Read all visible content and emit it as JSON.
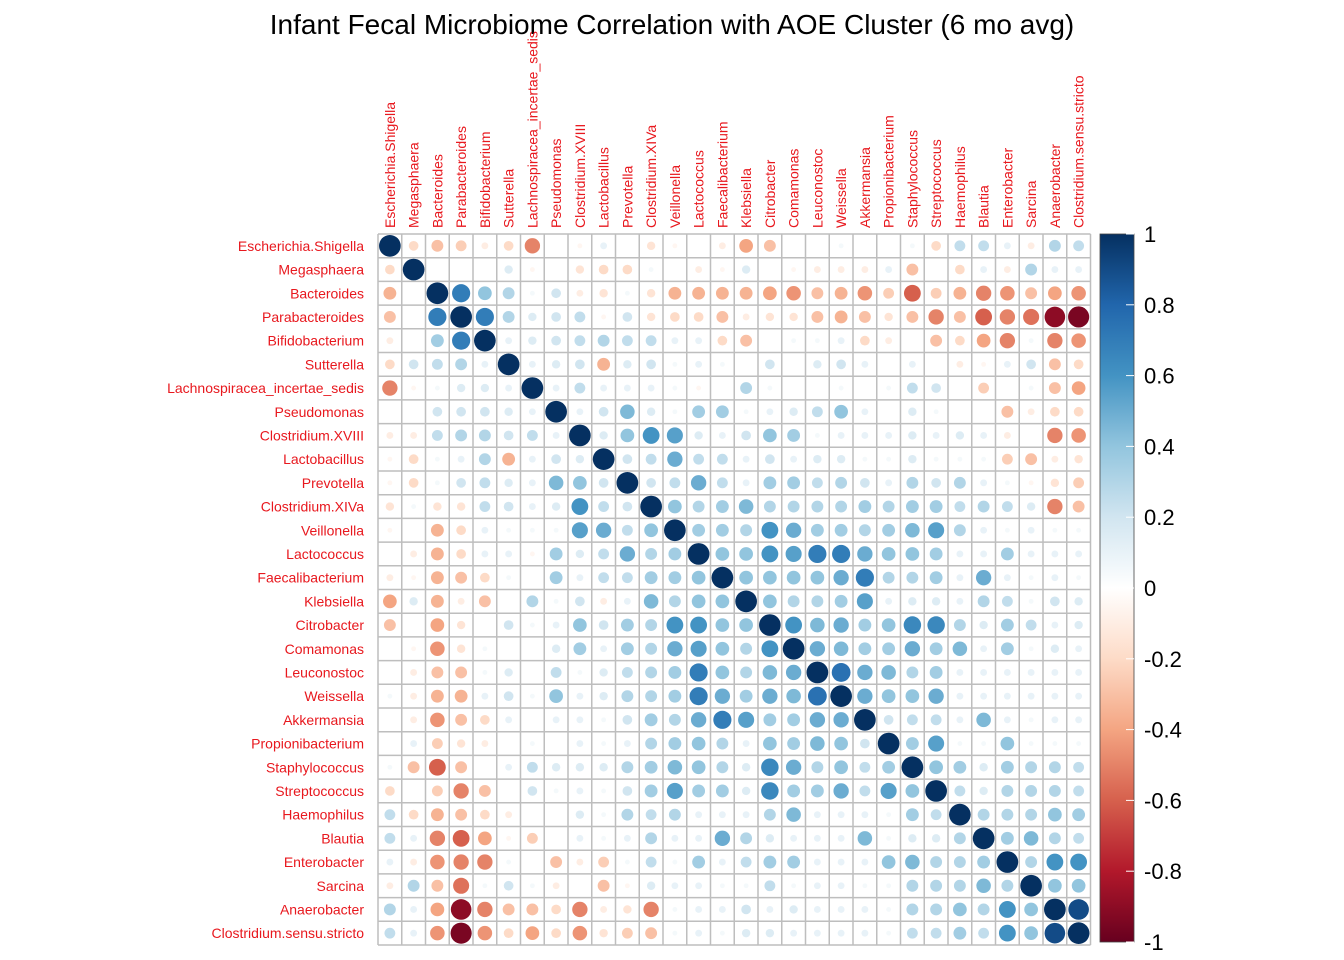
{
  "chart_data": {
    "type": "heatmap",
    "title": "Infant Fecal Microbiome Correlation with AOE Cluster (6 mo avg)",
    "labels": [
      "Escherichia.Shigella",
      "Megasphaera",
      "Bacteroides",
      "Parabacteroides",
      "Bifidobacterium",
      "Sutterella",
      "Lachnospiracea_incertae_sedis",
      "Pseudomonas",
      "Clostridium.XVIII",
      "Lactobacillus",
      "Prevotella",
      "Clostridium.XIVa",
      "Veillonella",
      "Lactococcus",
      "Faecalibacterium",
      "Klebsiella",
      "Citrobacter",
      "Comamonas",
      "Leuconostoc",
      "Weissella",
      "Akkermansia",
      "Propionibacterium",
      "Staphylococcus",
      "Streptococcus",
      "Haemophilus",
      "Blautia",
      "Enterobacter",
      "Sarcina",
      "Anaerobacter",
      "Clostridium.sensu.stricto"
    ],
    "label_color": "#e8181e",
    "value_range": [
      -1,
      1
    ],
    "colorbar_ticks": [
      "1",
      "0.8",
      "0.6",
      "0.4",
      "0.2",
      "0",
      "-0.2",
      "-0.4",
      "-0.6",
      "-0.8",
      "-1"
    ],
    "colorscale": [
      "#67001f",
      "#b2182b",
      "#d6604d",
      "#f4a582",
      "#fddbc7",
      "#ffffff",
      "#d1e5f0",
      "#92c5de",
      "#4393c3",
      "#2166ac",
      "#053061"
    ],
    "method": "circle",
    "matrix": [
      [
        1,
        -0.2,
        -0.3,
        -0.25,
        -0.1,
        -0.2,
        -0.5,
        0,
        -0.05,
        0.1,
        0,
        -0.15,
        -0.05,
        0,
        -0.1,
        -0.4,
        -0.3,
        0,
        0,
        0.05,
        0,
        0,
        0.05,
        -0.2,
        0.25,
        0.25,
        0.1,
        -0.1,
        0.3,
        0.25
      ],
      [
        -0.2,
        1,
        0,
        0,
        0,
        0.15,
        -0.05,
        0,
        -0.15,
        -0.2,
        -0.2,
        0.05,
        0,
        -0.1,
        -0.05,
        0.15,
        0,
        -0.05,
        -0.1,
        -0.1,
        -0.1,
        0.1,
        -0.3,
        0,
        -0.2,
        0.1,
        -0.1,
        0.3,
        0.1,
        0.1
      ],
      [
        -0.35,
        0,
        1,
        0.7,
        0.4,
        0.3,
        0.05,
        0.2,
        -0.1,
        -0.15,
        0.05,
        -0.15,
        -0.35,
        -0.35,
        -0.35,
        -0.35,
        -0.4,
        -0.45,
        -0.3,
        -0.35,
        -0.45,
        -0.25,
        -0.6,
        -0.25,
        -0.35,
        -0.5,
        -0.45,
        -0.3,
        -0.4,
        -0.45
      ],
      [
        -0.3,
        0,
        0.7,
        1,
        0.7,
        0.3,
        0.15,
        0.2,
        0.25,
        -0.05,
        0.2,
        -0.15,
        -0.2,
        -0.2,
        -0.3,
        -0.1,
        -0.15,
        -0.15,
        -0.3,
        -0.35,
        -0.3,
        -0.15,
        -0.3,
        -0.5,
        -0.3,
        -0.6,
        -0.5,
        -0.55,
        -0.9,
        -0.95
      ],
      [
        -0.1,
        0,
        0.35,
        0.7,
        1,
        0.1,
        0.15,
        0.2,
        0.25,
        0.3,
        0.25,
        0.25,
        0.1,
        0.1,
        -0.2,
        -0.3,
        0,
        0.05,
        0.05,
        0.1,
        -0.2,
        -0.1,
        0,
        -0.3,
        -0.2,
        -0.4,
        -0.5,
        0.05,
        -0.5,
        -0.45
      ],
      [
        -0.2,
        0.2,
        0.25,
        0.3,
        0.1,
        1,
        0.1,
        0.15,
        0.2,
        -0.35,
        0.15,
        0.2,
        0.05,
        0.1,
        0.05,
        0,
        0.2,
        0,
        0.15,
        0.2,
        0.1,
        0,
        0.1,
        0,
        -0.1,
        -0.05,
        0.1,
        0.2,
        -0.3,
        -0.2
      ],
      [
        -0.5,
        -0.05,
        0.05,
        0.15,
        0.15,
        0.1,
        1,
        0.1,
        0.25,
        0.1,
        0.1,
        0.1,
        0.05,
        -0.05,
        0,
        0.3,
        0.05,
        0,
        0,
        0.05,
        0,
        0.05,
        0.25,
        0.2,
        0,
        -0.25,
        0,
        0.05,
        -0.3,
        -0.4
      ],
      [
        0,
        0,
        0.2,
        0.2,
        0.2,
        0.15,
        0.1,
        1,
        0.1,
        0.2,
        0.45,
        0.15,
        0.05,
        0.35,
        0.35,
        0.05,
        0.1,
        0.15,
        0.25,
        0.4,
        0.1,
        0,
        0.15,
        0.05,
        0,
        0,
        -0.3,
        -0.1,
        -0.2,
        -0.2
      ],
      [
        -0.1,
        -0.1,
        0.25,
        0.3,
        0.3,
        0.2,
        0.25,
        0.1,
        1,
        0.15,
        0.4,
        0.6,
        0.55,
        0.15,
        0.1,
        0.2,
        0.4,
        0.35,
        0.05,
        0.1,
        0.1,
        0.1,
        0.15,
        0.1,
        0.15,
        0.1,
        -0.1,
        0,
        -0.5,
        -0.45
      ],
      [
        -0.05,
        -0.2,
        0.05,
        0.1,
        0.3,
        -0.35,
        0.1,
        0.2,
        0.15,
        1,
        0.2,
        0.25,
        0.5,
        0.25,
        0.25,
        0.1,
        0.2,
        0.1,
        0.15,
        0.15,
        0.05,
        0.05,
        0.15,
        0.05,
        0.05,
        0.05,
        -0.25,
        -0.3,
        -0.1,
        -0.15
      ],
      [
        -0.05,
        -0.2,
        0.05,
        0.2,
        0.25,
        0.15,
        0.1,
        0.45,
        0.4,
        0.2,
        1,
        0.2,
        0.25,
        0.5,
        0.25,
        0.1,
        0.35,
        0.35,
        0.25,
        0.3,
        0.2,
        0.1,
        0.3,
        0.2,
        0.3,
        0.1,
        0.05,
        -0.05,
        -0.15,
        -0.25
      ],
      [
        -0.15,
        0.05,
        -0.15,
        -0.15,
        0.25,
        0.2,
        0.1,
        0.15,
        0.6,
        0.25,
        0.2,
        1,
        0.4,
        0.3,
        0.35,
        0.45,
        0.3,
        0.3,
        0.3,
        0.3,
        0.35,
        0.3,
        0.35,
        0.35,
        0.25,
        0.3,
        0.25,
        0.15,
        -0.5,
        -0.3
      ],
      [
        -0.05,
        0,
        -0.35,
        -0.2,
        0.1,
        0.05,
        0.05,
        0.05,
        0.55,
        0.5,
        0.25,
        0.4,
        1,
        0.35,
        0.35,
        0.3,
        0.6,
        0.5,
        0.35,
        0.35,
        0.3,
        0.35,
        0.45,
        0.55,
        0.3,
        0.1,
        0.05,
        0.1,
        0.05,
        0.05
      ],
      [
        0,
        -0.1,
        -0.35,
        -0.2,
        0.1,
        0.1,
        -0.05,
        0.35,
        0.15,
        0.25,
        0.5,
        0.3,
        0.35,
        1,
        0.4,
        0.4,
        0.6,
        0.55,
        0.7,
        0.7,
        0.5,
        0.4,
        0.4,
        0.35,
        0.1,
        0.1,
        0.35,
        0.1,
        0.1,
        0.1
      ],
      [
        -0.1,
        -0.05,
        -0.35,
        -0.3,
        -0.2,
        0.05,
        0,
        0.35,
        0.1,
        0.25,
        0.25,
        0.35,
        0.35,
        0.4,
        1,
        0.4,
        0.4,
        0.4,
        0.4,
        0.5,
        0.7,
        0.3,
        0.3,
        0.35,
        0.1,
        0.5,
        0.1,
        0.05,
        0.1,
        0.05
      ],
      [
        -0.4,
        0.15,
        -0.35,
        -0.1,
        -0.3,
        0,
        0.3,
        0.05,
        0.2,
        -0.1,
        0.1,
        0.45,
        0.3,
        0.4,
        0.4,
        1,
        0.4,
        0.3,
        0.3,
        0.35,
        0.55,
        0.1,
        0.15,
        0.15,
        0.1,
        0.3,
        0.25,
        0.05,
        0.2,
        0.15
      ],
      [
        -0.3,
        0,
        -0.4,
        -0.15,
        0,
        0.2,
        0.05,
        0.1,
        0.4,
        0.2,
        0.35,
        0.3,
        0.6,
        0.6,
        0.4,
        0.4,
        1,
        0.6,
        0.45,
        0.5,
        0.35,
        0.4,
        0.65,
        0.65,
        0.3,
        0.15,
        0.35,
        0.25,
        0.1,
        0.15
      ],
      [
        0,
        -0.05,
        -0.45,
        -0.15,
        0.05,
        0,
        0,
        0.15,
        0.35,
        0.1,
        0.35,
        0.3,
        0.5,
        0.55,
        0.4,
        0.3,
        0.6,
        1,
        0.5,
        0.45,
        0.35,
        0.35,
        0.5,
        0.35,
        0.45,
        0.1,
        0.35,
        0.05,
        0.15,
        0.1
      ],
      [
        0,
        -0.1,
        -0.3,
        -0.3,
        0.05,
        0.15,
        0,
        0.25,
        0.05,
        0.15,
        0.25,
        0.3,
        0.35,
        0.7,
        0.4,
        0.3,
        0.45,
        0.5,
        1,
        0.75,
        0.5,
        0.45,
        0.3,
        0.35,
        0.1,
        0.1,
        0.1,
        0.1,
        0.1,
        0.1
      ],
      [
        0.05,
        -0.1,
        -0.35,
        -0.35,
        0.1,
        0.2,
        0.05,
        0.4,
        0.1,
        0.15,
        0.3,
        0.3,
        0.35,
        0.7,
        0.5,
        0.35,
        0.5,
        0.45,
        0.75,
        1,
        0.5,
        0.4,
        0.4,
        0.5,
        0.1,
        0.1,
        0.1,
        0.1,
        0.1,
        0.1
      ],
      [
        0,
        -0.1,
        -0.45,
        -0.3,
        -0.2,
        0.1,
        0,
        0.1,
        0.1,
        0.05,
        0.2,
        0.35,
        0.3,
        0.5,
        0.7,
        0.55,
        0.35,
        0.35,
        0.5,
        0.5,
        1,
        0.2,
        0.25,
        0.25,
        0.1,
        0.45,
        0.1,
        0.05,
        0.1,
        0.1
      ],
      [
        0,
        0.1,
        -0.25,
        -0.15,
        -0.1,
        0,
        0.05,
        0,
        0.1,
        0.05,
        0.1,
        0.3,
        0.35,
        0.4,
        0.3,
        0.1,
        0.4,
        0.35,
        0.45,
        0.4,
        0.2,
        1,
        0.35,
        0.55,
        0.05,
        0.05,
        0.4,
        0.05,
        0.05,
        0.05
      ],
      [
        0.05,
        -0.3,
        -0.6,
        -0.3,
        0,
        0.1,
        0.25,
        0.15,
        0.15,
        0.15,
        0.3,
        0.35,
        0.45,
        0.4,
        0.3,
        0.15,
        0.65,
        0.5,
        0.3,
        0.4,
        0.25,
        0.35,
        1,
        0.4,
        0.35,
        0.15,
        0.35,
        0.3,
        0.3,
        0.25
      ],
      [
        -0.2,
        0,
        -0.25,
        -0.5,
        -0.3,
        0,
        0.2,
        0.05,
        0.1,
        0.05,
        0.2,
        0.35,
        0.55,
        0.35,
        0.35,
        0.15,
        0.65,
        0.35,
        0.35,
        0.5,
        0.25,
        0.55,
        0.4,
        1,
        0.25,
        0.15,
        0.3,
        0.3,
        0.3,
        0.25
      ],
      [
        0.25,
        -0.2,
        -0.35,
        -0.3,
        -0.2,
        -0.1,
        0,
        0,
        0.15,
        0.05,
        0.3,
        0.25,
        0.3,
        0.1,
        0.1,
        0.1,
        0.3,
        0.45,
        0.1,
        0.1,
        0.1,
        0.05,
        0.35,
        0.25,
        1,
        0.3,
        0.3,
        0.3,
        0.4,
        0.35
      ],
      [
        0.25,
        0.1,
        -0.5,
        -0.6,
        -0.4,
        -0.05,
        -0.25,
        0,
        0.1,
        0.05,
        0.1,
        0.3,
        0.1,
        0.1,
        0.5,
        0.3,
        0.15,
        0.1,
        0.1,
        0.1,
        0.45,
        0.05,
        0.15,
        0.15,
        0.3,
        1,
        0.35,
        0.45,
        0.3,
        0.25
      ],
      [
        0.1,
        -0.1,
        -0.45,
        -0.5,
        -0.5,
        0.05,
        0,
        -0.3,
        -0.1,
        -0.25,
        0.05,
        0.25,
        0.05,
        0.35,
        0.1,
        0.25,
        0.35,
        0.35,
        0.1,
        0.1,
        0.1,
        0.4,
        0.45,
        0.3,
        0.3,
        0.35,
        1,
        0.3,
        0.6,
        0.6
      ],
      [
        -0.1,
        0.3,
        -0.3,
        -0.55,
        0.05,
        0.2,
        0.05,
        -0.1,
        0,
        -0.3,
        -0.05,
        0.15,
        0.1,
        0.1,
        0.05,
        0.05,
        0.25,
        0.05,
        0.1,
        0.1,
        0.05,
        0.05,
        0.3,
        0.3,
        0.3,
        0.45,
        0.3,
        1,
        0.4,
        0.4
      ],
      [
        0.3,
        0.1,
        -0.4,
        -0.9,
        -0.5,
        -0.3,
        -0.3,
        -0.2,
        -0.5,
        -0.1,
        -0.15,
        -0.5,
        0.05,
        0.1,
        0.1,
        0.2,
        0.1,
        0.15,
        0.1,
        0.1,
        0.1,
        0.05,
        0.3,
        0.3,
        0.4,
        0.3,
        0.6,
        0.4,
        1,
        0.9
      ],
      [
        0.25,
        0.1,
        -0.45,
        -0.95,
        -0.45,
        -0.2,
        -0.4,
        -0.2,
        -0.45,
        -0.15,
        -0.25,
        -0.3,
        0.05,
        0.1,
        0.05,
        0.15,
        0.15,
        0.1,
        0.1,
        0.1,
        0.1,
        0.05,
        0.25,
        0.25,
        0.35,
        0.25,
        0.6,
        0.4,
        0.9,
        1
      ]
    ]
  }
}
